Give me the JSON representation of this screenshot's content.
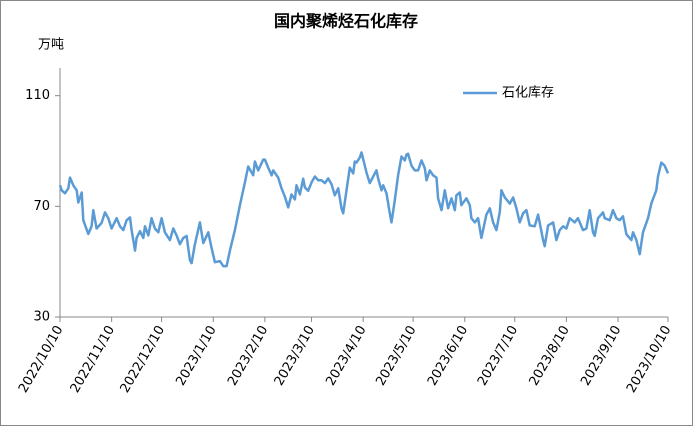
{
  "chart_data": {
    "type": "line",
    "title": "国内聚烯烃石化库存",
    "y_label": "万吨",
    "legend": "upper right",
    "ylim": [
      30,
      120
    ],
    "yticks": [
      30,
      70,
      110
    ],
    "xlim": [
      "2022/10/10",
      "2023/10/10"
    ],
    "xticks": [
      "2022/10/10",
      "2022/11/10",
      "2022/12/10",
      "2023/1/10",
      "2023/2/10",
      "2023/3/10",
      "2023/4/10",
      "2023/5/10",
      "2023/6/10",
      "2023/7/10",
      "2023/8/10",
      "2023/9/10",
      "2023/10/10"
    ],
    "x": [
      "2022/10/10",
      "2022/10/11",
      "2022/10/13",
      "2022/10/15",
      "2022/10/16",
      "2022/10/18",
      "2022/10/20",
      "2022/10/21",
      "2022/10/23",
      "2022/10/24",
      "2022/10/27",
      "2022/10/29",
      "2022/10/30",
      "2022/11/1",
      "2022/11/4",
      "2022/11/6",
      "2022/11/8",
      "2022/11/10",
      "2022/11/13",
      "2022/11/15",
      "2022/11/17",
      "2022/11/19",
      "2022/11/21",
      "2022/11/22",
      "2022/11/24",
      "2022/11/25",
      "2022/11/27",
      "2022/11/29",
      "2022/11/30",
      "2022/12/2",
      "2022/12/4",
      "2022/12/6",
      "2022/12/8",
      "2022/12/10",
      "2022/12/12",
      "2022/12/15",
      "2022/12/17",
      "2022/12/19",
      "2022/12/21",
      "2022/12/23",
      "2022/12/25",
      "2022/12/27",
      "2022/12/28",
      "2022/12/30",
      "2023/1/2",
      "2023/1/4",
      "2023/1/7",
      "2023/1/9",
      "2023/1/11",
      "2023/1/14",
      "2023/1/16",
      "2023/1/18",
      "2023/1/20",
      "2023/1/23",
      "2023/1/26",
      "2023/1/29",
      "2023/1/31",
      "2023/2/3",
      "2023/2/4",
      "2023/2/6",
      "2023/2/9",
      "2023/2/10",
      "2023/2/12",
      "2023/2/14",
      "2023/2/15",
      "2023/2/18",
      "2023/2/20",
      "2023/2/22",
      "2023/2/24",
      "2023/2/26",
      "2023/2/28",
      "2023/3/1",
      "2023/3/3",
      "2023/3/5",
      "2023/3/6",
      "2023/3/8",
      "2023/3/10",
      "2023/3/12",
      "2023/3/14",
      "2023/3/16",
      "2023/3/18",
      "2023/3/20",
      "2023/3/22",
      "2023/3/24",
      "2023/3/26",
      "2023/3/28",
      "2023/3/29",
      "2023/3/31",
      "2023/4/2",
      "2023/4/4",
      "2023/4/5",
      "2023/4/6",
      "2023/4/8",
      "2023/4/9",
      "2023/4/11",
      "2023/4/12",
      "2023/4/14",
      "2023/4/16",
      "2023/4/18",
      "2023/4/19",
      "2023/4/21",
      "2023/4/22",
      "2023/4/24",
      "2023/4/26",
      "2023/4/27",
      "2023/4/29",
      "2023/5/1",
      "2023/5/3",
      "2023/5/5",
      "2023/5/6",
      "2023/5/7",
      "2023/5/9",
      "2023/5/11",
      "2023/5/13",
      "2023/5/15",
      "2023/5/17",
      "2023/5/18",
      "2023/5/20",
      "2023/5/22",
      "2023/5/24",
      "2023/5/25",
      "2023/5/27",
      "2023/5/29",
      "2023/5/31",
      "2023/6/2",
      "2023/6/4",
      "2023/6/5",
      "2023/6/7",
      "2023/6/8",
      "2023/6/11",
      "2023/6/13",
      "2023/6/14",
      "2023/6/16",
      "2023/6/18",
      "2023/6/20",
      "2023/6/23",
      "2023/6/25",
      "2023/6/27",
      "2023/6/29",
      "2023/7/1",
      "2023/7/2",
      "2023/7/4",
      "2023/7/7",
      "2023/7/9",
      "2023/7/11",
      "2023/7/13",
      "2023/7/15",
      "2023/7/17",
      "2023/7/19",
      "2023/7/22",
      "2023/7/24",
      "2023/7/27",
      "2023/7/28",
      "2023/7/30",
      "2023/8/2",
      "2023/8/4",
      "2023/8/6",
      "2023/8/8",
      "2023/8/10",
      "2023/8/12",
      "2023/8/15",
      "2023/8/17",
      "2023/8/20",
      "2023/8/22",
      "2023/8/24",
      "2023/8/26",
      "2023/8/27",
      "2023/8/29",
      "2023/9/1",
      "2023/9/2",
      "2023/9/5",
      "2023/9/7",
      "2023/9/9",
      "2023/9/11",
      "2023/9/13",
      "2023/9/15",
      "2023/9/18",
      "2023/9/19",
      "2023/9/21",
      "2023/9/23",
      "2023/9/25",
      "2023/9/28",
      "2023/9/30",
      "2023/10/3",
      "2023/10/4",
      "2023/10/6",
      "2023/10/8",
      "2023/10/10"
    ],
    "series": [
      {
        "name": "石化库存",
        "color": "#5b9bd5",
        "values": [
          77.6,
          75.8,
          74.7,
          76.5,
          80.4,
          77.6,
          75.8,
          71.4,
          75,
          65,
          60,
          62.8,
          68.6,
          62,
          64,
          67.8,
          65.7,
          62,
          65.7,
          62.8,
          61.4,
          65,
          66,
          61.4,
          54,
          58.6,
          61,
          58.6,
          62.8,
          59.5,
          65.7,
          62,
          60.6,
          65.7,
          60.6,
          57.8,
          62,
          59.5,
          56.3,
          58.6,
          59.3,
          50.6,
          49.5,
          56.3,
          64.2,
          56.7,
          60.6,
          54.9,
          49.8,
          50.2,
          48.4,
          48.4,
          54,
          61.4,
          70.4,
          78.6,
          84.4,
          81.2,
          86.2,
          83,
          86.9,
          86.9,
          84,
          81.2,
          83,
          80.4,
          76.5,
          73.5,
          69.6,
          74.3,
          72.5,
          77.6,
          74.3,
          80,
          76.8,
          75.6,
          78.6,
          80.8,
          79.4,
          79.4,
          78.4,
          80.1,
          78,
          74,
          76.5,
          69.3,
          67.5,
          75.8,
          84,
          81.9,
          86.2,
          85.8,
          87.6,
          89.5,
          84.7,
          82.2,
          78.4,
          80.8,
          83,
          80,
          75.8,
          77.6,
          74.7,
          67.5,
          64.2,
          72.2,
          81.2,
          88,
          86.6,
          88.7,
          89,
          84.7,
          83,
          83,
          86.6,
          83.8,
          79.4,
          83,
          81.2,
          80.4,
          72.9,
          68.6,
          75.8,
          69.3,
          72.9,
          68.6,
          74,
          75,
          70.4,
          72.9,
          70.4,
          65.7,
          64.2,
          65.7,
          58.6,
          67,
          69.3,
          64.2,
          61.4,
          68,
          75.8,
          73.2,
          71,
          73.2,
          69.3,
          64.2,
          67.5,
          68.6,
          63.1,
          62.8,
          67,
          57.8,
          55.6,
          63.1,
          64.2,
          57.8,
          61.4,
          62.8,
          62,
          65.7,
          64.2,
          65.7,
          61.4,
          62,
          68.6,
          60.6,
          59.3,
          65.7,
          67.8,
          65.7,
          65,
          68.6,
          65.7,
          65,
          66.4,
          59.9,
          57.8,
          60.6,
          57.8,
          52.7,
          60.6,
          65.7,
          71,
          75.8,
          80.8,
          85.8,
          84.7,
          81.9
        ]
      }
    ]
  }
}
